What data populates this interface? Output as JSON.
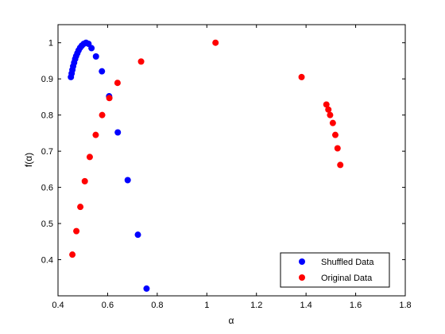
{
  "chart_data": {
    "type": "scatter",
    "xlabel": "α",
    "ylabel": "f(α)",
    "xlim": [
      0.4,
      1.8
    ],
    "ylim": [
      0.3,
      1.05
    ],
    "xticks": [
      "0.4",
      "0.6",
      "0.8",
      "1",
      "1.2",
      "1.4",
      "1.6",
      "1.8"
    ],
    "yticks": [
      "0.4",
      "0.5",
      "0.6",
      "0.7",
      "0.8",
      "0.9",
      "1"
    ],
    "legend_position": "bottom-right",
    "grid": false,
    "series": [
      {
        "name": "Shuffled Data",
        "color": "#0000ff",
        "points": [
          {
            "x": 0.452,
            "y": 0.905
          },
          {
            "x": 0.455,
            "y": 0.915
          },
          {
            "x": 0.458,
            "y": 0.925
          },
          {
            "x": 0.461,
            "y": 0.935
          },
          {
            "x": 0.465,
            "y": 0.945
          },
          {
            "x": 0.469,
            "y": 0.955
          },
          {
            "x": 0.473,
            "y": 0.963
          },
          {
            "x": 0.478,
            "y": 0.971
          },
          {
            "x": 0.483,
            "y": 0.979
          },
          {
            "x": 0.489,
            "y": 0.986
          },
          {
            "x": 0.496,
            "y": 0.992
          },
          {
            "x": 0.504,
            "y": 0.997
          },
          {
            "x": 0.513,
            "y": 1.0
          },
          {
            "x": 0.523,
            "y": 0.997
          },
          {
            "x": 0.535,
            "y": 0.985
          },
          {
            "x": 0.553,
            "y": 0.962
          },
          {
            "x": 0.577,
            "y": 0.921
          },
          {
            "x": 0.606,
            "y": 0.852
          },
          {
            "x": 0.641,
            "y": 0.752
          },
          {
            "x": 0.681,
            "y": 0.62
          },
          {
            "x": 0.722,
            "y": 0.469
          },
          {
            "x": 0.757,
            "y": 0.32
          }
        ]
      },
      {
        "name": "Original Data",
        "color": "#ff0000",
        "points": [
          {
            "x": 0.458,
            "y": 0.414
          },
          {
            "x": 0.474,
            "y": 0.479
          },
          {
            "x": 0.49,
            "y": 0.546
          },
          {
            "x": 0.508,
            "y": 0.617
          },
          {
            "x": 0.528,
            "y": 0.684
          },
          {
            "x": 0.552,
            "y": 0.745
          },
          {
            "x": 0.578,
            "y": 0.8
          },
          {
            "x": 0.607,
            "y": 0.847
          },
          {
            "x": 0.64,
            "y": 0.889
          },
          {
            "x": 0.735,
            "y": 0.948
          },
          {
            "x": 1.035,
            "y": 1.0
          },
          {
            "x": 1.382,
            "y": 0.905
          },
          {
            "x": 1.482,
            "y": 0.829
          },
          {
            "x": 1.49,
            "y": 0.815
          },
          {
            "x": 1.497,
            "y": 0.8
          },
          {
            "x": 1.508,
            "y": 0.778
          },
          {
            "x": 1.518,
            "y": 0.745
          },
          {
            "x": 1.527,
            "y": 0.708
          },
          {
            "x": 1.538,
            "y": 0.662
          }
        ]
      }
    ]
  }
}
